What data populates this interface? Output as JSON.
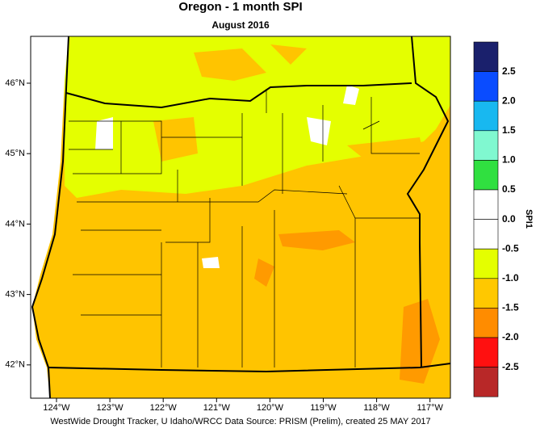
{
  "title": "Oregon - 1 month SPI",
  "subtitle": "August 2016",
  "lon_ticks": [
    {
      "value": -124,
      "label": "124°W"
    },
    {
      "value": -123,
      "label": "123°W"
    },
    {
      "value": -122,
      "label": "122°W"
    },
    {
      "value": -121,
      "label": "121°W"
    },
    {
      "value": -120,
      "label": "120°W"
    },
    {
      "value": -119,
      "label": "119°W"
    },
    {
      "value": -118,
      "label": "118°W"
    },
    {
      "value": -117,
      "label": "117°W"
    }
  ],
  "lat_ticks": [
    {
      "value": 46,
      "label": "46°N"
    },
    {
      "value": 45,
      "label": "45°N"
    },
    {
      "value": 44,
      "label": "44°N"
    },
    {
      "value": 43,
      "label": "43°N"
    },
    {
      "value": 42,
      "label": "42°N"
    }
  ],
  "colorbar": {
    "title": "SPI1",
    "colors": [
      "#1a206c",
      "#0a4cff",
      "#18b8f0",
      "#80f8d0",
      "#30e040",
      "#ffffff",
      "#ffffff",
      "#e4ff00",
      "#ffc800",
      "#ff8c00",
      "#ff1010",
      "#b82828"
    ],
    "boundaries": [
      {
        "value": 2.5,
        "label": "2.5"
      },
      {
        "value": 2,
        "label": "2.0"
      },
      {
        "value": 1.5,
        "label": "1.5"
      },
      {
        "value": 1,
        "label": "1.0"
      },
      {
        "value": 0.5,
        "label": "0.5"
      },
      {
        "value": 0,
        "label": "0.0"
      },
      {
        "value": -0.5,
        "label": "-0.5"
      },
      {
        "value": -1,
        "label": "-1.0"
      },
      {
        "value": -1.5,
        "label": "-1.5"
      },
      {
        "value": -2,
        "label": "-2.0"
      },
      {
        "value": -2.5,
        "label": "-2.5"
      }
    ]
  },
  "credit": "WestWide Drought Tracker, U Idaho/WRCC Data Source: PRISM (Prelim), created 25 MAY 2017"
}
